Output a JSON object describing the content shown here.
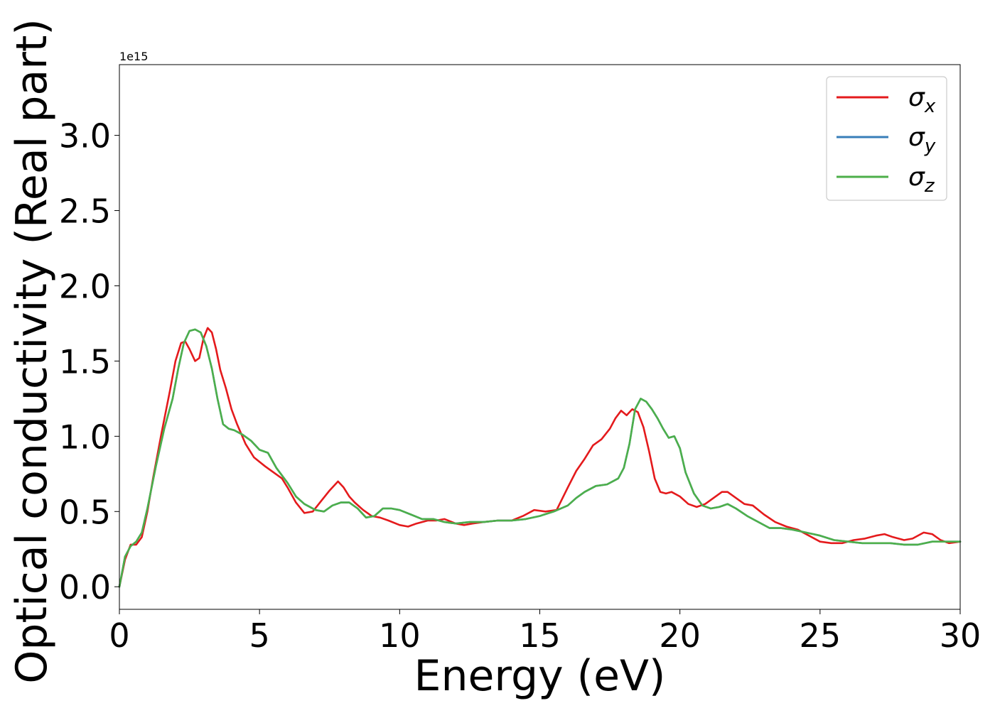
{
  "chart_data": {
    "type": "line",
    "xlabel": "Energy (eV)",
    "ylabel": "Optical conductivity (Real part)",
    "y_scale_label": "1e15",
    "xlim": [
      0,
      30
    ],
    "ylim": [
      -0.15,
      3.47
    ],
    "x_ticks": [
      0,
      5,
      10,
      15,
      20,
      25,
      30
    ],
    "x_tick_labels": [
      "0",
      "5",
      "10",
      "15",
      "20",
      "25",
      "30"
    ],
    "y_ticks": [
      0.0,
      0.5,
      1.0,
      1.5,
      2.0,
      2.5,
      3.0
    ],
    "y_tick_labels": [
      "0.0",
      "0.5",
      "1.0",
      "1.5",
      "2.0",
      "2.5",
      "3.0"
    ],
    "grid": false,
    "legend_position": "top-right",
    "series": [
      {
        "name": "σx",
        "legend_base": "σ",
        "legend_sub": "x",
        "color": "#e41a1c",
        "x": [
          0,
          0.2,
          0.4,
          0.6,
          0.8,
          1.0,
          1.2,
          1.5,
          1.8,
          2.0,
          2.2,
          2.35,
          2.5,
          2.7,
          2.85,
          3.0,
          3.15,
          3.3,
          3.45,
          3.6,
          3.8,
          4.0,
          4.2,
          4.5,
          4.8,
          5.0,
          5.2,
          5.5,
          5.8,
          6.0,
          6.3,
          6.6,
          6.9,
          7.2,
          7.5,
          7.8,
          8.0,
          8.2,
          8.4,
          8.7,
          9.0,
          9.3,
          9.6,
          10.0,
          10.3,
          10.6,
          11.0,
          11.3,
          11.6,
          12.0,
          12.3,
          12.6,
          13.0,
          13.5,
          14.0,
          14.4,
          14.8,
          15.2,
          15.6,
          16.0,
          16.3,
          16.6,
          16.9,
          17.2,
          17.5,
          17.7,
          17.9,
          18.1,
          18.3,
          18.5,
          18.7,
          18.9,
          19.1,
          19.3,
          19.5,
          19.7,
          20.0,
          20.3,
          20.6,
          20.9,
          21.2,
          21.5,
          21.7,
          22.0,
          22.3,
          22.6,
          23.0,
          23.4,
          23.8,
          24.2,
          24.6,
          25.0,
          25.4,
          25.8,
          26.2,
          26.6,
          27.0,
          27.3,
          27.6,
          28.0,
          28.3,
          28.7,
          29.0,
          29.3,
          29.6,
          30.0
        ],
        "y": [
          0.0,
          0.18,
          0.28,
          0.28,
          0.33,
          0.5,
          0.72,
          1.02,
          1.3,
          1.5,
          1.62,
          1.63,
          1.58,
          1.5,
          1.52,
          1.65,
          1.72,
          1.69,
          1.58,
          1.44,
          1.32,
          1.18,
          1.08,
          0.95,
          0.86,
          0.83,
          0.8,
          0.76,
          0.72,
          0.66,
          0.56,
          0.49,
          0.5,
          0.57,
          0.64,
          0.7,
          0.66,
          0.6,
          0.56,
          0.51,
          0.47,
          0.46,
          0.44,
          0.41,
          0.4,
          0.42,
          0.44,
          0.44,
          0.45,
          0.42,
          0.41,
          0.42,
          0.43,
          0.44,
          0.44,
          0.47,
          0.51,
          0.5,
          0.51,
          0.66,
          0.77,
          0.85,
          0.94,
          0.98,
          1.05,
          1.12,
          1.17,
          1.14,
          1.18,
          1.16,
          1.06,
          0.9,
          0.72,
          0.63,
          0.62,
          0.63,
          0.6,
          0.55,
          0.53,
          0.55,
          0.59,
          0.63,
          0.63,
          0.59,
          0.55,
          0.54,
          0.48,
          0.43,
          0.4,
          0.38,
          0.34,
          0.3,
          0.29,
          0.29,
          0.31,
          0.32,
          0.34,
          0.35,
          0.33,
          0.31,
          0.32,
          0.36,
          0.35,
          0.31,
          0.29,
          0.3
        ]
      },
      {
        "name": "σy",
        "legend_base": "σ",
        "legend_sub": "y",
        "color": "#377eb8",
        "x": [
          0,
          0.2,
          0.4,
          0.6,
          0.8,
          1.0,
          1.3,
          1.6,
          1.9,
          2.1,
          2.3,
          2.5,
          2.7,
          2.9,
          3.1,
          3.3,
          3.5,
          3.7,
          3.9,
          4.1,
          4.4,
          4.7,
          5.0,
          5.3,
          5.6,
          6.0,
          6.3,
          6.6,
          7.0,
          7.3,
          7.6,
          7.9,
          8.2,
          8.5,
          8.8,
          9.1,
          9.4,
          9.7,
          10.0,
          10.4,
          10.8,
          11.2,
          11.6,
          12.0,
          12.5,
          13.0,
          13.5,
          14.0,
          14.5,
          15.0,
          15.5,
          16.0,
          16.3,
          16.6,
          17.0,
          17.4,
          17.8,
          18.0,
          18.2,
          18.4,
          18.6,
          18.8,
          19.0,
          19.2,
          19.4,
          19.6,
          19.8,
          20.0,
          20.2,
          20.5,
          20.8,
          21.1,
          21.4,
          21.7,
          22.0,
          22.4,
          22.8,
          23.2,
          23.6,
          24.0,
          24.5,
          25.0,
          25.5,
          26.0,
          26.5,
          27.0,
          27.5,
          28.0,
          28.5,
          29.0,
          29.5,
          30.0
        ],
        "y": [
          0.0,
          0.2,
          0.27,
          0.3,
          0.36,
          0.52,
          0.8,
          1.05,
          1.25,
          1.45,
          1.62,
          1.7,
          1.71,
          1.69,
          1.6,
          1.45,
          1.25,
          1.08,
          1.05,
          1.04,
          1.01,
          0.97,
          0.91,
          0.89,
          0.79,
          0.69,
          0.6,
          0.55,
          0.51,
          0.5,
          0.54,
          0.56,
          0.56,
          0.52,
          0.46,
          0.47,
          0.52,
          0.52,
          0.51,
          0.48,
          0.45,
          0.45,
          0.43,
          0.42,
          0.43,
          0.43,
          0.44,
          0.44,
          0.45,
          0.47,
          0.5,
          0.54,
          0.59,
          0.63,
          0.67,
          0.68,
          0.72,
          0.79,
          0.95,
          1.18,
          1.25,
          1.23,
          1.18,
          1.12,
          1.05,
          0.99,
          1.0,
          0.92,
          0.76,
          0.62,
          0.54,
          0.52,
          0.53,
          0.55,
          0.52,
          0.47,
          0.43,
          0.39,
          0.39,
          0.38,
          0.36,
          0.34,
          0.31,
          0.3,
          0.29,
          0.29,
          0.29,
          0.28,
          0.28,
          0.3,
          0.3,
          0.3
        ]
      },
      {
        "name": "σz",
        "legend_base": "σ",
        "legend_sub": "z",
        "color": "#4daf4a",
        "x": [
          0,
          0.2,
          0.4,
          0.6,
          0.8,
          1.0,
          1.3,
          1.6,
          1.9,
          2.1,
          2.3,
          2.5,
          2.7,
          2.9,
          3.1,
          3.3,
          3.5,
          3.7,
          3.9,
          4.1,
          4.4,
          4.7,
          5.0,
          5.3,
          5.6,
          6.0,
          6.3,
          6.6,
          7.0,
          7.3,
          7.6,
          7.9,
          8.2,
          8.5,
          8.8,
          9.1,
          9.4,
          9.7,
          10.0,
          10.4,
          10.8,
          11.2,
          11.6,
          12.0,
          12.5,
          13.0,
          13.5,
          14.0,
          14.5,
          15.0,
          15.5,
          16.0,
          16.3,
          16.6,
          17.0,
          17.4,
          17.8,
          18.0,
          18.2,
          18.4,
          18.6,
          18.8,
          19.0,
          19.2,
          19.4,
          19.6,
          19.8,
          20.0,
          20.2,
          20.5,
          20.8,
          21.1,
          21.4,
          21.7,
          22.0,
          22.4,
          22.8,
          23.2,
          23.6,
          24.0,
          24.5,
          25.0,
          25.5,
          26.0,
          26.5,
          27.0,
          27.5,
          28.0,
          28.5,
          29.0,
          29.5,
          30.0
        ],
        "y": [
          0.0,
          0.2,
          0.27,
          0.3,
          0.36,
          0.52,
          0.8,
          1.05,
          1.25,
          1.45,
          1.62,
          1.7,
          1.71,
          1.69,
          1.6,
          1.45,
          1.25,
          1.08,
          1.05,
          1.04,
          1.01,
          0.97,
          0.91,
          0.89,
          0.79,
          0.69,
          0.6,
          0.55,
          0.51,
          0.5,
          0.54,
          0.56,
          0.56,
          0.52,
          0.46,
          0.47,
          0.52,
          0.52,
          0.51,
          0.48,
          0.45,
          0.45,
          0.43,
          0.42,
          0.43,
          0.43,
          0.44,
          0.44,
          0.45,
          0.47,
          0.5,
          0.54,
          0.59,
          0.63,
          0.67,
          0.68,
          0.72,
          0.79,
          0.95,
          1.18,
          1.25,
          1.23,
          1.18,
          1.12,
          1.05,
          0.99,
          1.0,
          0.92,
          0.76,
          0.62,
          0.54,
          0.52,
          0.53,
          0.55,
          0.52,
          0.47,
          0.43,
          0.39,
          0.39,
          0.38,
          0.36,
          0.34,
          0.31,
          0.3,
          0.29,
          0.29,
          0.29,
          0.28,
          0.28,
          0.3,
          0.3,
          0.3
        ]
      }
    ]
  }
}
